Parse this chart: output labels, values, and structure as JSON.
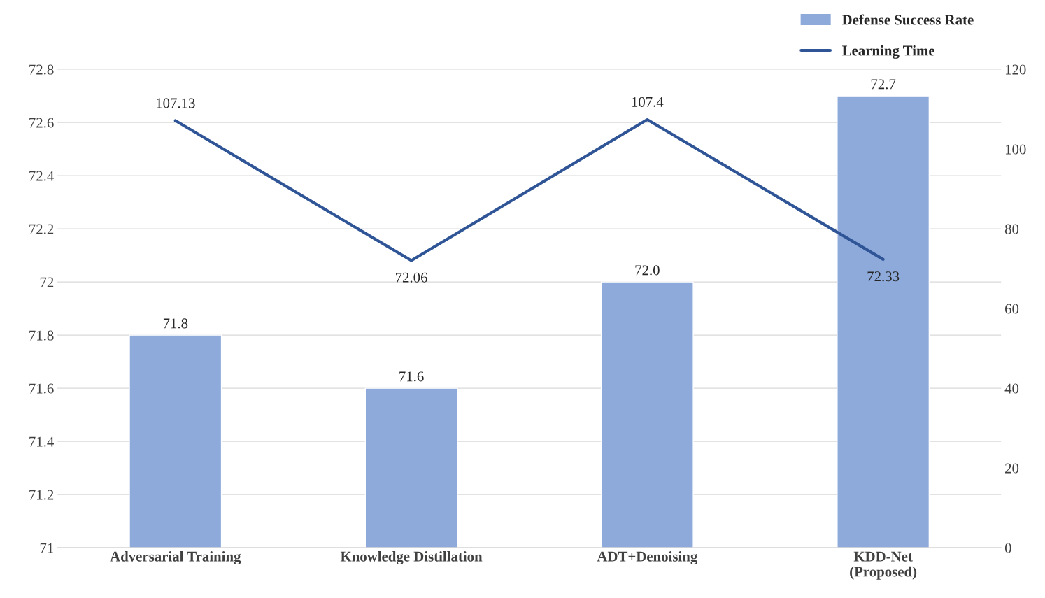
{
  "chart_data": {
    "type": "bar",
    "categories": [
      "Adversarial Training",
      "Knowledge Distillation",
      "ADT+Denoising",
      "KDD-Net\n(Proposed)"
    ],
    "series": [
      {
        "name": "Defense Success Rate",
        "color": "#8eaadb",
        "values": [
          71.8,
          71.6,
          72.0,
          72.7
        ],
        "value_labels": [
          "71.8",
          "71.6",
          "72.0",
          "72.7"
        ]
      },
      {
        "name": "Learning Time",
        "type": "line",
        "axis": "y2",
        "color": "#2f5597",
        "values": [
          107.13,
          72.06,
          107.4,
          72.33
        ],
        "value_labels": [
          "107.13",
          "72.06",
          "107.4",
          "72.33"
        ]
      }
    ],
    "ylim": [
      71,
      72.8
    ],
    "yticks": [
      71,
      71.2,
      71.4,
      71.6,
      71.8,
      72,
      72.2,
      72.4,
      72.6,
      72.8
    ],
    "y2lim": [
      0,
      120
    ],
    "y2ticks": [
      0,
      20,
      40,
      60,
      80,
      100,
      120
    ],
    "grid": "y",
    "legend": "top right",
    "marker": "none",
    "line_style": "solid"
  }
}
